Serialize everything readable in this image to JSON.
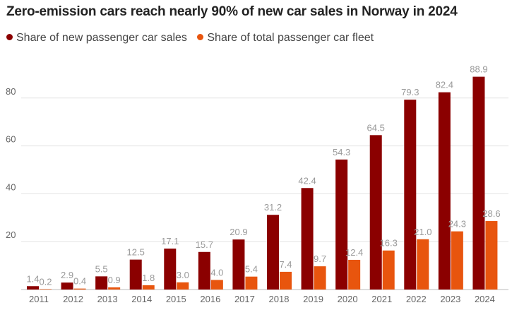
{
  "chart_data": {
    "type": "bar",
    "title": "Zero-emission cars reach nearly 90% of new car sales in Norway in 2024",
    "categories": [
      "2011",
      "2012",
      "2013",
      "2014",
      "2015",
      "2016",
      "2017",
      "2018",
      "2019",
      "2020",
      "2021",
      "2022",
      "2023",
      "2024"
    ],
    "series": [
      {
        "name": "Share of new passenger car sales",
        "color": "#8b0000",
        "values": [
          1.4,
          2.9,
          5.5,
          12.5,
          17.1,
          15.7,
          20.9,
          31.2,
          42.4,
          54.3,
          64.5,
          79.3,
          82.4,
          88.9
        ],
        "labels": [
          "1.4",
          "2.9",
          "5.5",
          "12.5",
          "17.1",
          "15.7",
          "20.9",
          "31.2",
          "42.4",
          "54.3",
          "64.5",
          "79.3",
          "82.4",
          "88.9"
        ]
      },
      {
        "name": "Share of total passenger car fleet",
        "color": "#e8550e",
        "values": [
          0.2,
          0.4,
          0.9,
          1.8,
          3.0,
          4.0,
          5.4,
          7.4,
          9.7,
          12.4,
          16.3,
          21.0,
          24.3,
          28.6
        ],
        "labels": [
          "0.2",
          "0.4",
          "0.9",
          "1.8",
          "3.0",
          "4.0",
          "5.4",
          "7.4",
          "9.7",
          "12.4",
          "16.3",
          "21.0",
          "24.3",
          "28.6"
        ]
      }
    ],
    "yticks": [
      20,
      40,
      60,
      80
    ],
    "ytick_labels": [
      "20",
      "40",
      "60",
      "80"
    ],
    "ylim": [
      0,
      100
    ],
    "grid": true,
    "legend_position": "top-left"
  }
}
